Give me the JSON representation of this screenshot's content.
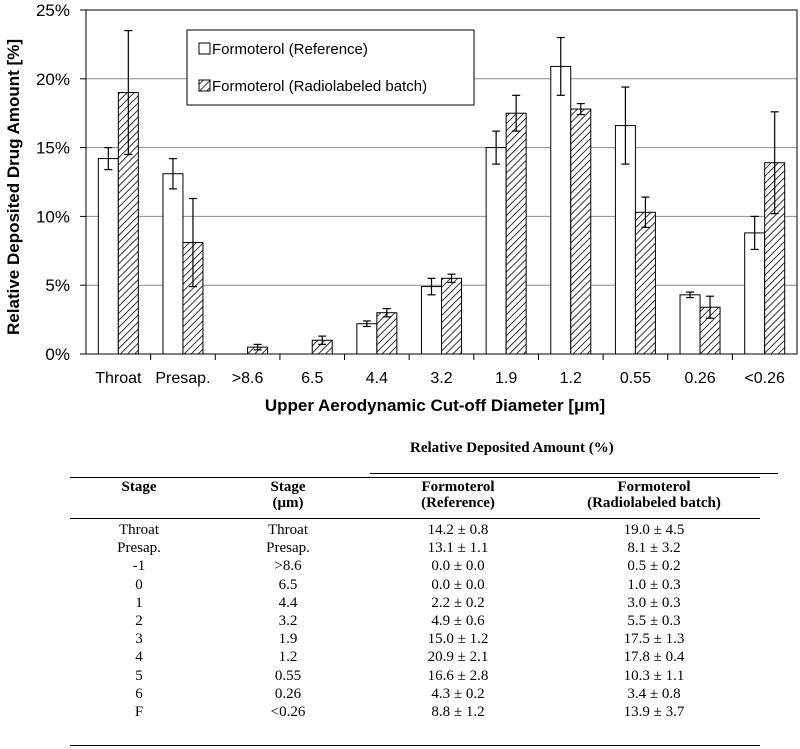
{
  "chart_data": {
    "type": "bar",
    "ylabel": "Relative Deposited Drug Amount [%]",
    "xlabel": "Upper Aerodynamic Cut-off Diameter [μm]",
    "ylim": [
      0,
      25
    ],
    "yticks": [
      "0%",
      "5%",
      "10%",
      "15%",
      "20%",
      "25%"
    ],
    "ytick_values": [
      0,
      5,
      10,
      15,
      20,
      25
    ],
    "grid": true,
    "legend_position": "top-left",
    "categories": [
      "Throat",
      "Presap.",
      ">8.6",
      "6.5",
      "4.4",
      "3.2",
      "1.9",
      "1.2",
      "0.55",
      "0.26",
      "<0.26"
    ],
    "series": [
      {
        "name": "Formoterol (Reference)",
        "fill": "#ffffff",
        "values": [
          14.2,
          13.1,
          0.0,
          0.0,
          2.2,
          4.9,
          15.0,
          20.9,
          16.6,
          4.3,
          8.8
        ],
        "errors": [
          0.8,
          1.1,
          0.0,
          0.0,
          0.2,
          0.6,
          1.2,
          2.1,
          2.8,
          0.2,
          1.2
        ]
      },
      {
        "name": "Formoterol (Radiolabeled batch)",
        "fill": "hatched",
        "values": [
          19.0,
          8.1,
          0.5,
          1.0,
          3.0,
          5.5,
          17.5,
          17.8,
          10.3,
          3.4,
          13.9
        ],
        "errors": [
          4.5,
          3.2,
          0.2,
          0.3,
          0.3,
          0.3,
          1.3,
          0.4,
          1.1,
          0.8,
          3.7
        ]
      }
    ]
  },
  "table": {
    "super_header": "Relative Deposited Amount (%)",
    "headers": [
      [
        "Stage"
      ],
      [
        "Stage",
        "(μm)"
      ],
      [
        "Formoterol",
        "(Reference)"
      ],
      [
        "Formoterol",
        "(Radiolabeled batch)"
      ]
    ],
    "rows": [
      [
        "Throat",
        "Throat",
        "14.2 ± 0.8",
        "19.0 ± 4.5"
      ],
      [
        "Presap.",
        "Presap.",
        "13.1 ± 1.1",
        "8.1 ± 3.2"
      ],
      [
        "-1",
        ">8.6",
        "0.0 ± 0.0",
        "0.5 ± 0.2"
      ],
      [
        "0",
        "6.5",
        "0.0 ± 0.0",
        "1.0 ± 0.3"
      ],
      [
        "1",
        "4.4",
        "2.2 ± 0.2",
        "3.0 ± 0.3"
      ],
      [
        "2",
        "3.2",
        "4.9 ± 0.6",
        "5.5 ± 0.3"
      ],
      [
        "3",
        "1.9",
        "15.0 ± 1.2",
        "17.5 ± 1.3"
      ],
      [
        "4",
        "1.2",
        "20.9 ± 2.1",
        "17.8 ± 0.4"
      ],
      [
        "5",
        "0.55",
        "16.6 ± 2.8",
        "10.3 ± 1.1"
      ],
      [
        "6",
        "0.26",
        "4.3 ± 0.2",
        "3.4 ± 0.8"
      ],
      [
        "F",
        "<0.26",
        "8.8 ± 1.2",
        "13.9 ± 3.7"
      ]
    ]
  }
}
